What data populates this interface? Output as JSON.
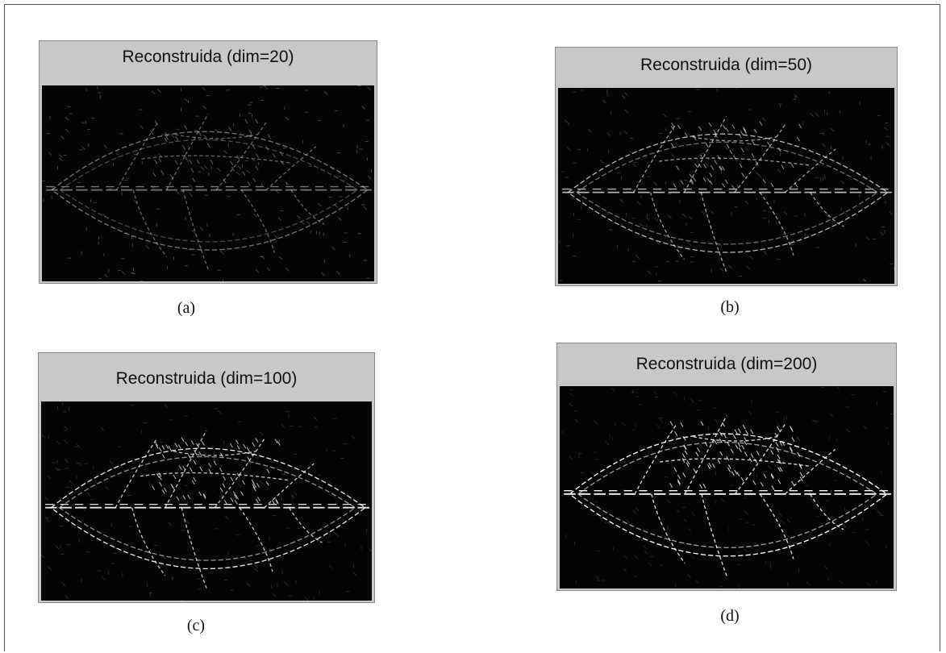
{
  "panels": [
    {
      "title": "Reconstruida (dim=20)",
      "caption": "(a)"
    },
    {
      "title": "Reconstruida (dim=50)",
      "caption": "(b)"
    },
    {
      "title": "Reconstruida (dim=100)",
      "caption": "(c)"
    },
    {
      "title": "Reconstruida (dim=200)",
      "caption": "(d)"
    }
  ]
}
